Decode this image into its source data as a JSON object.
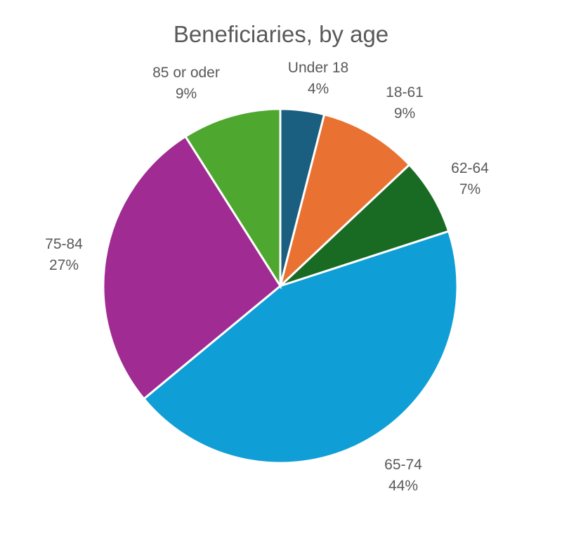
{
  "chart_data": {
    "type": "pie",
    "title": "Beneficiaries, by age",
    "slices": [
      {
        "label": "Under 18",
        "value": 4,
        "display": "4%",
        "color": "#1a5e80"
      },
      {
        "label": "18-61",
        "value": 9,
        "display": "9%",
        "color": "#e97132"
      },
      {
        "label": "62-64",
        "value": 7,
        "display": "7%",
        "color": "#196b24"
      },
      {
        "label": "65-74",
        "value": 44,
        "display": "44%",
        "color": "#0f9ed5"
      },
      {
        "label": "75-84",
        "value": 27,
        "display": "27%",
        "color": "#a02b93"
      },
      {
        "label": "85 or oder",
        "value": 9,
        "display": "9%",
        "color": "#4ea72e"
      }
    ],
    "start_angle": "12 o'clock",
    "direction": "clockwise",
    "legend": "none",
    "data_labels": "outside"
  }
}
